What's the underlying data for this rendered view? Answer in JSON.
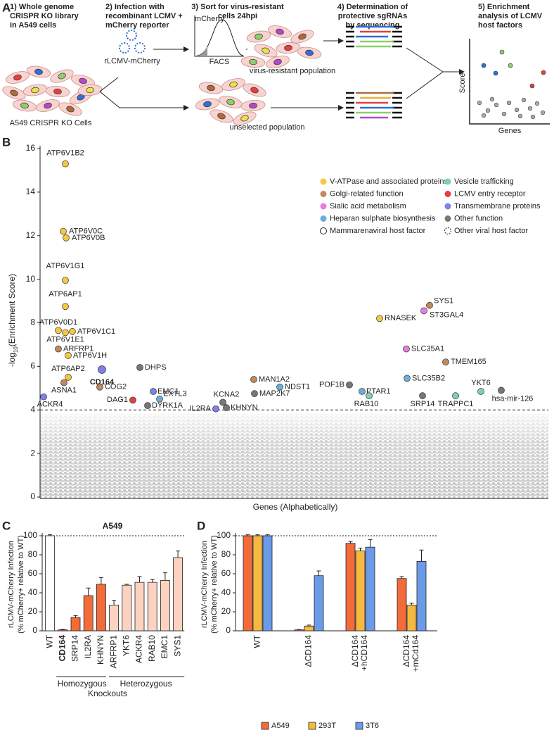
{
  "panel_labels": [
    "A",
    "B",
    "C",
    "D"
  ],
  "workflow": {
    "steps": [
      [
        "1) Whole genome",
        "CRISPR KO library",
        "in A549 cells"
      ],
      [
        "2) Infection with",
        "recombinant LCMV +",
        "mCherry reporter"
      ],
      [
        "3) Sort for virus-resistant",
        "cells 24hpi"
      ],
      [
        "4) Determination of",
        "protective sgRNAs",
        "by sequencing"
      ],
      [
        "5) Enrichment",
        "analysis of LCMV",
        "host factors"
      ]
    ],
    "virus_label": "rLCMV-mCherry",
    "histogram_y": "mCherry",
    "histogram_x": "FACS",
    "resistant": "virus-resistant population",
    "unselected": "unselected population",
    "cells": "A549 CRISPR KO Cells",
    "score_axis": "Score",
    "genes_axis": "Genes"
  },
  "chart_data": [
    {
      "type": "scatter",
      "ylabel": [
        "-log",
        "10",
        "(Enrichment Score)"
      ],
      "xlabel": "Genes (Alphabetically)",
      "xlim": [
        0,
        20000
      ],
      "ylim": [
        0,
        16
      ],
      "yticks": [
        0,
        2,
        4,
        6,
        8,
        10,
        12,
        14,
        16
      ],
      "threshold": 4,
      "groups": [
        {
          "name": "V-ATPase and associated proteins",
          "color": "#f5c842"
        },
        {
          "name": "Golgi-related function",
          "color": "#c08a5a"
        },
        {
          "name": "Sialic acid metabolism",
          "color": "#e67ee0"
        },
        {
          "name": "Heparan sulphate biosynthesis",
          "color": "#6aaedc"
        },
        {
          "name": "Mammarenaviral host factor",
          "color": "none"
        },
        {
          "name": "Vesicle trafficking",
          "color": "#7dd3b0"
        },
        {
          "name": "LCMV entry receptor",
          "color": "#e34040"
        },
        {
          "name": "Transmembrane proteins",
          "color": "#8080e8"
        },
        {
          "name": "Other function",
          "color": "#777777"
        },
        {
          "name": "Other viral host factor",
          "color": "none"
        }
      ],
      "labels": [
        "ATP6V1B2",
        "ATP6V0C",
        "ATP6V0B",
        "ATP6V1G1",
        "ATP6AP1",
        "ATP6V0D1",
        "ATP6V1C1",
        "ATP6V1E1",
        "ARFRP1",
        "ATP6V1H",
        "ATP6AP2",
        "CD164",
        "ASNA1",
        "ACKR4",
        "DHPS",
        "COG2",
        "EMC1",
        "DAG1",
        "EXTL3",
        "DYRK1A",
        "IL2RA",
        "KCNA2",
        "KHNYN",
        "MAN1A2",
        "MAP2K7",
        "NDST1",
        "POF1B",
        "PTAR1",
        "RAB10",
        "RNASEK",
        "SYS1",
        "ST3GAL4",
        "SLC35A1",
        "SLC35B2",
        "SRP14",
        "TMEM165",
        "TRAPPC1",
        "YKT6",
        "hsa-mir-126"
      ],
      "x": [
        996,
        913,
        1023,
        996,
        996,
        719,
        1272,
        996,
        719,
        1107,
        1107,
        2434,
        940,
        138,
        3928,
        2351,
        4454,
        3651,
        4703,
        4232,
        6916,
        7192,
        7331,
        8409,
        8437,
        9433,
        12172,
        12669,
        12946,
        13361,
        15325,
        15104,
        14412,
        14440,
        15048,
        15961,
        16349,
        17345,
        18147
      ],
      "values": [
        15.3,
        12.2,
        11.9,
        9.95,
        8.75,
        7.65,
        7.6,
        7.55,
        6.8,
        6.5,
        5.5,
        5.85,
        5.25,
        4.6,
        5.95,
        5.05,
        4.85,
        4.45,
        4.5,
        4.2,
        4.05,
        4.35,
        4.1,
        5.4,
        4.75,
        5.05,
        5.15,
        4.85,
        4.65,
        8.2,
        8.8,
        8.55,
        6.8,
        5.45,
        4.65,
        6.2,
        4.65,
        4.85,
        4.9
      ],
      "group": [
        0,
        0,
        0,
        0,
        0,
        0,
        0,
        0,
        1,
        0,
        0,
        7,
        1,
        7,
        8,
        1,
        7,
        6,
        3,
        8,
        7,
        8,
        8,
        1,
        8,
        3,
        8,
        3,
        5,
        0,
        1,
        2,
        2,
        3,
        8,
        1,
        5,
        5,
        8
      ]
    },
    {
      "type": "bar",
      "title": "A549",
      "ylabel": [
        "rLCMV-mCherry Infection",
        "(% mCherry+ relative to WT)"
      ],
      "categories": [
        "WT",
        "CD164",
        "SRP14",
        "IL2RA",
        "KHNYN",
        "ARFRP1",
        "YKT6",
        "ACKR4",
        "RAB10",
        "EMC1",
        "SYS1"
      ],
      "values": [
        100,
        1,
        14,
        37,
        49,
        27,
        48,
        51,
        51,
        53,
        77
      ],
      "errors": [
        1,
        0.5,
        2,
        8,
        7,
        5,
        1,
        6,
        3,
        8,
        7
      ],
      "colors": [
        "#ffffff",
        "#f26b3a",
        "#f26b3a",
        "#f26b3a",
        "#f26b3a",
        "#fbd3c0",
        "#fbd3c0",
        "#fbd3c0",
        "#fbd3c0",
        "#fbd3c0",
        "#fbd3c0"
      ],
      "groups": [
        "Homozygous",
        "Heterozygous"
      ],
      "group_note": "Knockouts",
      "ylim": [
        0,
        100
      ],
      "yticks": [
        0,
        20,
        40,
        60,
        80,
        100
      ],
      "reference": 100
    },
    {
      "type": "grouped-bar",
      "ylabel": [
        "rLCMV-mCherry Infection",
        "(% mCherry+ relative to WT)"
      ],
      "categories": [
        [
          "WT"
        ],
        [
          "ΔCD164"
        ],
        [
          "ΔCD164",
          "+hCD164"
        ],
        [
          "ΔCD164",
          "+mCd164"
        ]
      ],
      "series": [
        {
          "name": "A549",
          "color": "#f26b3a",
          "values": [
            100,
            1,
            92,
            55
          ],
          "errors": [
            1,
            0.3,
            2,
            2
          ]
        },
        {
          "name": "293T",
          "color": "#f5b942",
          "values": [
            100,
            5,
            84,
            27
          ],
          "errors": [
            1,
            1,
            3,
            2
          ]
        },
        {
          "name": "3T6",
          "color": "#6b9be8",
          "values": [
            100,
            58,
            88,
            73
          ],
          "errors": [
            1,
            5,
            8,
            12
          ]
        }
      ],
      "ylim": [
        0,
        100
      ],
      "yticks": [
        0,
        20,
        40,
        60,
        80,
        100
      ],
      "reference": 100
    }
  ]
}
